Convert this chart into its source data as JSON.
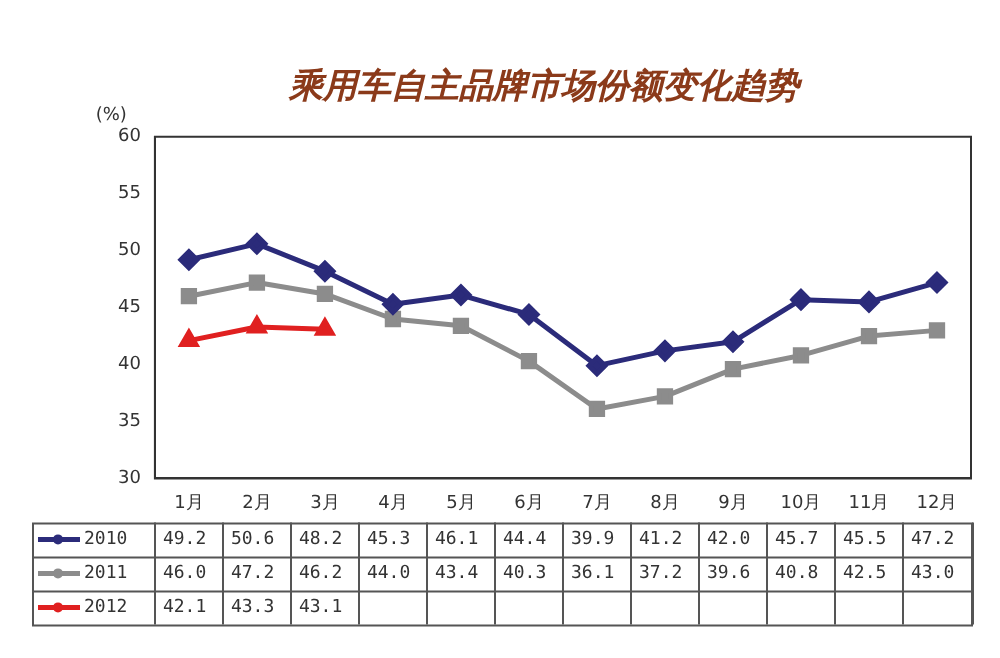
{
  "chart_data": {
    "type": "line",
    "title": "乘用车自主品牌市场份额变化趋势",
    "ylabel": "(%)",
    "categories": [
      "1月",
      "2月",
      "3月",
      "4月",
      "5月",
      "6月",
      "7月",
      "8月",
      "9月",
      "10月",
      "11月",
      "12月"
    ],
    "series": [
      {
        "name": "2010",
        "color": "#2b2b7a",
        "marker": "diamond",
        "values": [
          49.2,
          50.6,
          48.2,
          45.3,
          46.1,
          44.4,
          39.9,
          41.2,
          42.0,
          45.7,
          45.5,
          47.2
        ],
        "value_labels": [
          "49.2",
          "50.6",
          "48.2",
          "45.3",
          "46.1",
          "44.4",
          "39.9",
          "41.2",
          "42.0",
          "45.7",
          "45.5",
          "47.2"
        ]
      },
      {
        "name": "2011",
        "color": "#8c8c8c",
        "marker": "square",
        "values": [
          46.0,
          47.2,
          46.2,
          44.0,
          43.4,
          40.3,
          36.1,
          37.2,
          39.6,
          40.8,
          42.5,
          43.0
        ],
        "value_labels": [
          "46.0",
          "47.2",
          "46.2",
          "44.0",
          "43.4",
          "40.3",
          "36.1",
          "37.2",
          "39.6",
          "40.8",
          "42.5",
          "43.0"
        ]
      },
      {
        "name": "2012",
        "color": "#e02020",
        "marker": "triangle",
        "values": [
          42.1,
          43.3,
          43.1,
          null,
          null,
          null,
          null,
          null,
          null,
          null,
          null,
          null
        ],
        "value_labels": [
          "42.1",
          "43.3",
          "43.1",
          null,
          null,
          null,
          null,
          null,
          null,
          null,
          null,
          null
        ]
      }
    ],
    "ylim": [
      30,
      60
    ],
    "yticks": [
      30,
      35,
      40,
      45,
      50,
      55,
      60
    ],
    "legend": "bottom"
  }
}
